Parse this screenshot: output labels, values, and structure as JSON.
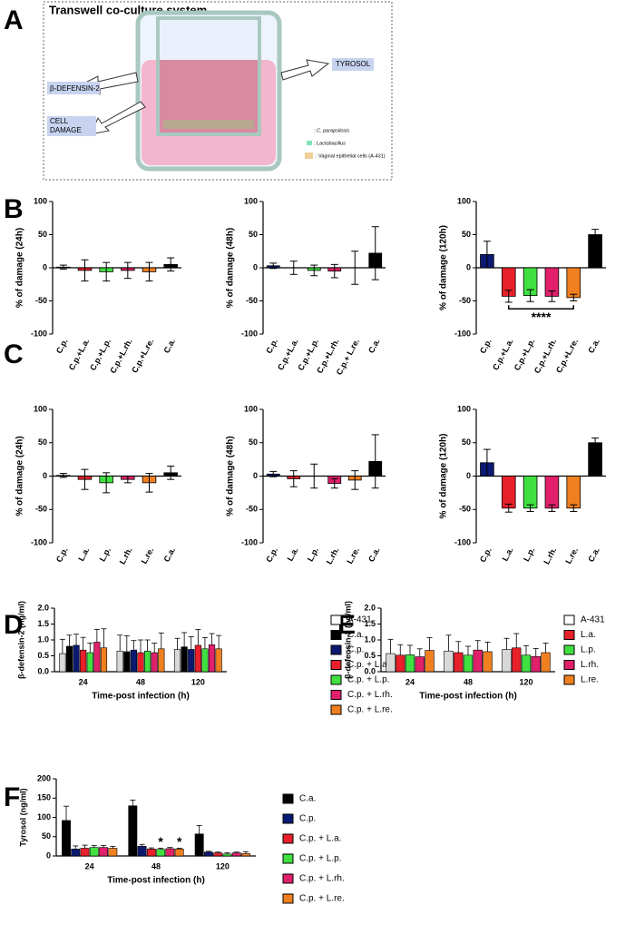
{
  "panel_labels": [
    "A",
    "B",
    "C",
    "D",
    "E",
    "F"
  ],
  "diagram": {
    "title": "Transwell co-culture system",
    "defensin": "β-DEFENSIN-2",
    "damage": [
      "CELL",
      "DAMAGE"
    ],
    "tyrosol": "TYROSOL",
    "legend": [
      ": C. parapsilosis",
      ": Lactobacillus",
      ": Vaginal epithelial cells (A-431)"
    ]
  },
  "chart_data": [
    {
      "type": "bar",
      "ylabel": "% of damage (24h)",
      "categories": [
        "C.p.",
        "C.p.+L.a.",
        "C.p.+L.p.",
        "C.p.+L.rh.",
        "C.p.+L.re.",
        "C.a."
      ],
      "values": [
        1,
        -4,
        -6,
        -4,
        -6,
        5
      ],
      "errors": [
        3,
        16,
        14,
        12,
        14,
        10
      ],
      "colors": [
        "#0b1a70",
        "#e8202a",
        "#40e040",
        "#e0206a",
        "#f07f20",
        "#000000"
      ],
      "ylim": [
        -100,
        100
      ],
      "yticks": [
        -100,
        -50,
        0,
        50,
        100
      ]
    },
    {
      "type": "bar",
      "ylabel": "% of damage  (48h)",
      "categories": [
        "C.p.",
        "C.p.+L.a.",
        "C.p.+L.p.",
        "C.p.+L.rh.",
        "C.p.+ L.re.",
        "C.a."
      ],
      "values": [
        3,
        0,
        -4,
        -5,
        0,
        22
      ],
      "errors": [
        4,
        10,
        8,
        10,
        25,
        40
      ],
      "colors": [
        "#0b1a70",
        "#e8202a",
        "#40e040",
        "#e0206a",
        "#f07f20",
        "#000000"
      ],
      "ylim": [
        -100,
        100
      ],
      "yticks": [
        -100,
        -50,
        0,
        50,
        100
      ]
    },
    {
      "type": "bar",
      "ylabel": "% of damage (120h)",
      "categories": [
        "C.p.",
        "C.p.+L.a.",
        "C.p.+L.p.",
        "C.p.+L.rh.",
        "C.p.+L.re.",
        "C.a."
      ],
      "values": [
        20,
        -43,
        -42,
        -43,
        -45,
        50
      ],
      "errors": [
        20,
        9,
        9,
        8,
        5,
        8
      ],
      "colors": [
        "#0b1a70",
        "#e8202a",
        "#40e040",
        "#e0206a",
        "#f07f20",
        "#000000"
      ],
      "ylim": [
        -100,
        100
      ],
      "yticks": [
        -100,
        -50,
        0,
        50,
        100
      ],
      "annotation": {
        "text": "****",
        "from": "C.p.+L.a.",
        "to": "C.p.+L.re."
      }
    },
    {
      "type": "bar",
      "ylabel": "% of damage (24h)",
      "categories": [
        "C.p.",
        "L.a.",
        "L.p.",
        "L.rh.",
        "L.re.",
        "C.a."
      ],
      "values": [
        1,
        -5,
        -10,
        -5,
        -10,
        5
      ],
      "errors": [
        3,
        15,
        15,
        5,
        14,
        10
      ],
      "colors": [
        "#0b1a70",
        "#e8202a",
        "#40e040",
        "#e0206a",
        "#f07f20",
        "#000000"
      ],
      "ylim": [
        -100,
        100
      ],
      "yticks": [
        -100,
        -50,
        0,
        50,
        100
      ]
    },
    {
      "type": "bar",
      "ylabel": "% of damage  (48h)",
      "categories": [
        "C.p.",
        "L.a.",
        "L.p.",
        "L.rh.",
        "L.re.",
        "C.a."
      ],
      "values": [
        3,
        -4,
        0,
        -11,
        -6,
        22
      ],
      "errors": [
        4,
        12,
        18,
        7,
        14,
        40
      ],
      "colors": [
        "#0b1a70",
        "#e8202a",
        "#40e040",
        "#e0206a",
        "#f07f20",
        "#000000"
      ],
      "ylim": [
        -100,
        100
      ],
      "yticks": [
        -100,
        -50,
        0,
        50,
        100
      ]
    },
    {
      "type": "bar",
      "ylabel": "% of damage (120h)",
      "categories": [
        "C.p.",
        "L.a.",
        "L.p.",
        "L.rh.",
        "L.re.",
        "C.a."
      ],
      "values": [
        20,
        -48,
        -48,
        -48,
        -48,
        50
      ],
      "errors": [
        20,
        6,
        5,
        5,
        5,
        7
      ],
      "colors": [
        "#0b1a70",
        "#e8202a",
        "#40e040",
        "#e0206a",
        "#f07f20",
        "#000000"
      ],
      "ylim": [
        -100,
        100
      ],
      "yticks": [
        -100,
        -50,
        0,
        50,
        100
      ]
    },
    {
      "type": "grouped_bar",
      "ylabel": "β-defensin-2 (ng/ml)",
      "xlabel": "Time-post infection (h)",
      "categories": [
        "24",
        "48",
        "120"
      ],
      "ylim": [
        0,
        2
      ],
      "yticks": [
        {
          "value": 0,
          "label": "0.0"
        },
        0.5,
        {
          "value": 1,
          "label": "1.0"
        },
        1.5,
        {
          "value": 2,
          "label": "2.0"
        }
      ],
      "series": [
        {
          "name": "A-431",
          "color": "#d8d8d8",
          "values": [
            0.57,
            0.65,
            0.7
          ],
          "errors": [
            0.45,
            0.5,
            0.35
          ]
        },
        {
          "name": "C.a.",
          "color": "#000000",
          "values": [
            0.8,
            0.63,
            0.78
          ],
          "errors": [
            0.35,
            0.5,
            0.45
          ]
        },
        {
          "name": "C.p.",
          "color": "#0b1a70",
          "values": [
            0.83,
            0.68,
            0.7
          ],
          "errors": [
            0.35,
            0.3,
            0.4
          ]
        },
        {
          "name": "C.p. + L.a.",
          "color": "#e8202a",
          "values": [
            0.68,
            0.6,
            0.83
          ],
          "errors": [
            0.4,
            0.4,
            0.5
          ]
        },
        {
          "name": "C.p. + L.p.",
          "color": "#40e040",
          "values": [
            0.6,
            0.65,
            0.72
          ],
          "errors": [
            0.3,
            0.35,
            0.35
          ]
        },
        {
          "name": "C.p. + L.rh.",
          "color": "#e0206a",
          "values": [
            0.93,
            0.6,
            0.85
          ],
          "errors": [
            0.4,
            0.3,
            0.35
          ]
        },
        {
          "name": "C.p. + L.re.",
          "color": "#f07f20",
          "values": [
            0.75,
            0.72,
            0.72
          ],
          "errors": [
            0.6,
            0.5,
            0.42
          ]
        }
      ]
    },
    {
      "type": "grouped_bar",
      "ylabel": "β-defensin-2 (ng/ml)",
      "xlabel": "Time-post infection (h)",
      "categories": [
        "24",
        "48",
        "120"
      ],
      "ylim": [
        0,
        2
      ],
      "yticks": [
        {
          "value": 0,
          "label": "0.0"
        },
        0.5,
        {
          "value": 1,
          "label": "1.0"
        },
        1.5,
        {
          "value": 2,
          "label": "2.0"
        }
      ],
      "series": [
        {
          "name": "A-431",
          "color": "#d8d8d8",
          "values": [
            0.57,
            0.65,
            0.7
          ],
          "errors": [
            0.45,
            0.5,
            0.35
          ]
        },
        {
          "name": "L.a.",
          "color": "#e8202a",
          "values": [
            0.52,
            0.6,
            0.75
          ],
          "errors": [
            0.33,
            0.35,
            0.45
          ]
        },
        {
          "name": "L.p.",
          "color": "#40e040",
          "values": [
            0.53,
            0.52,
            0.52
          ],
          "errors": [
            0.3,
            0.28,
            0.3
          ]
        },
        {
          "name": "L.rh.",
          "color": "#e0206a",
          "values": [
            0.47,
            0.68,
            0.48
          ],
          "errors": [
            0.25,
            0.3,
            0.25
          ]
        },
        {
          "name": "L.re.",
          "color": "#f07f20",
          "values": [
            0.67,
            0.63,
            0.6
          ],
          "errors": [
            0.4,
            0.3,
            0.3
          ]
        }
      ]
    },
    {
      "type": "grouped_bar",
      "ylabel": "Tyrosol (ng/ml)",
      "xlabel": "Time-post infection (h)",
      "categories": [
        "24",
        "48",
        "120"
      ],
      "ylim": [
        0,
        200
      ],
      "yticks": [
        0,
        50,
        100,
        150,
        200
      ],
      "series": [
        {
          "name": "C.a.",
          "color": "#000000",
          "values": [
            92,
            130,
            57
          ],
          "errors": [
            37,
            15,
            22
          ]
        },
        {
          "name": "C.p.",
          "color": "#0b1a70",
          "values": [
            18,
            25,
            10
          ],
          "errors": [
            8,
            5,
            2
          ]
        },
        {
          "name": "C.p. + L.a.",
          "color": "#e8202a",
          "values": [
            20,
            18,
            8
          ],
          "errors": [
            8,
            3,
            2
          ]
        },
        {
          "name": "C.p. + L.p.",
          "color": "#40e040",
          "values": [
            22,
            17,
            5
          ],
          "errors": [
            5,
            3,
            3
          ],
          "markers": [
            null,
            "*",
            null
          ]
        },
        {
          "name": "C.p. + L.rh.",
          "color": "#e0206a",
          "values": [
            22,
            19,
            8
          ],
          "errors": [
            5,
            3,
            2
          ]
        },
        {
          "name": "C.p. + L.re.",
          "color": "#f07f20",
          "values": [
            20,
            18,
            6
          ],
          "errors": [
            5,
            2,
            5
          ],
          "markers": [
            null,
            "*",
            null
          ]
        }
      ]
    }
  ]
}
